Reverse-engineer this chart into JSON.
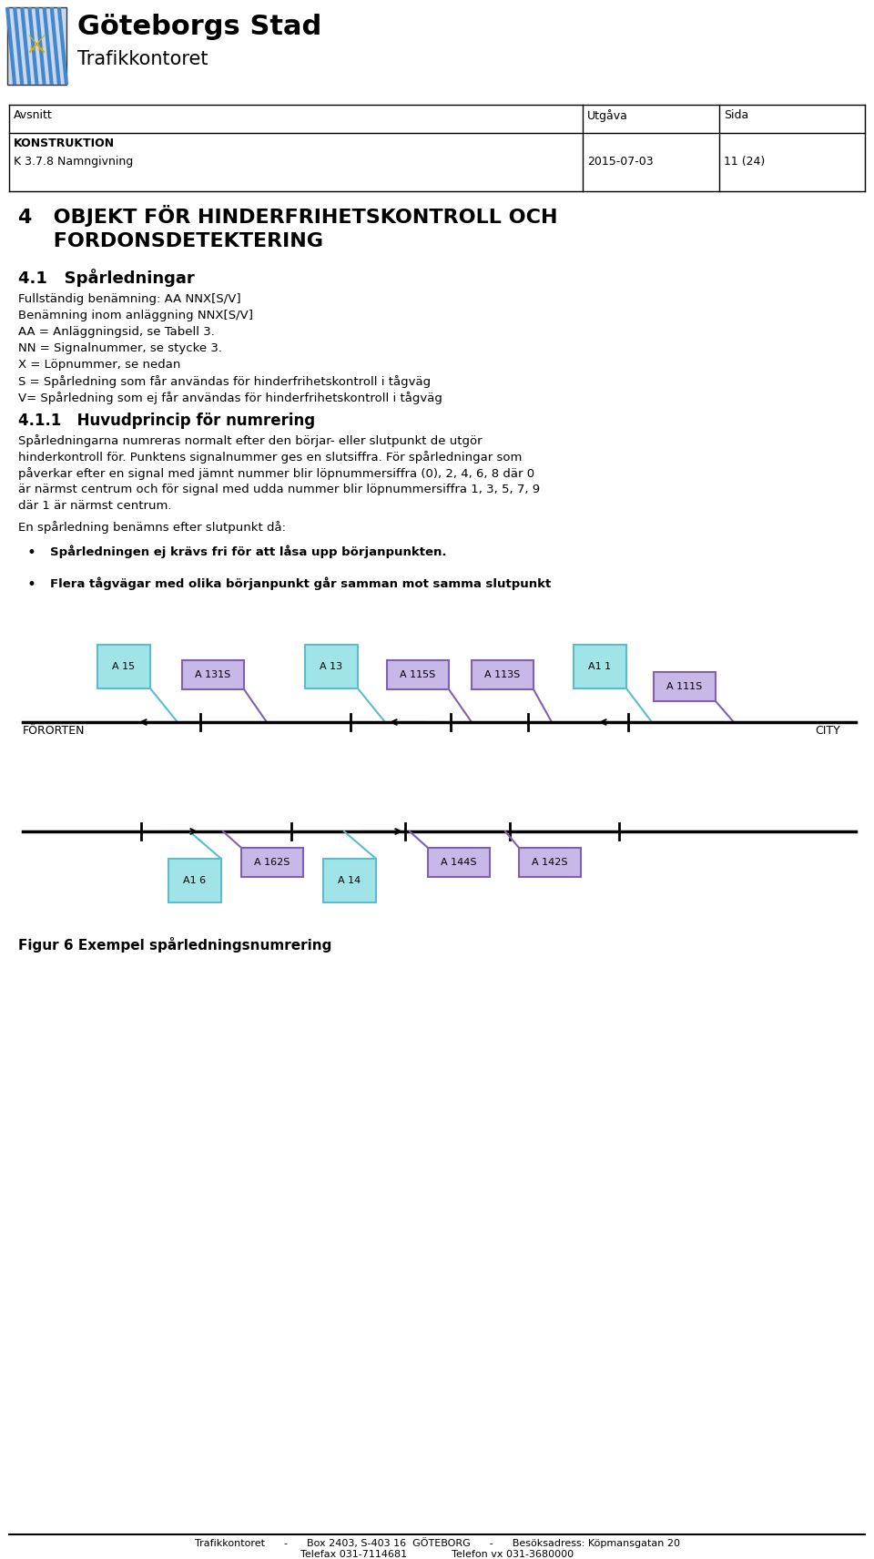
{
  "page_width": 9.6,
  "page_height": 17.12,
  "dpi": 100,
  "bg_color": "#ffffff",
  "header": {
    "org_name": "Göteborgs Stad",
    "dept_name": "Trafikkontoret",
    "table_row1_col1": "Avsnitt",
    "table_row1_col2": "Utgåva",
    "table_row1_col3": "Sida",
    "table_row2_col1": "KONSTRUKTION",
    "table_row3_col1": "K 3.7.8 Namngivning",
    "table_row3_col2": "2015-07-03",
    "table_row3_col3": "11 (24)"
  },
  "sec4_title_line1": "4   OBJEKT FÖR HINDERFRIHETSKONTROLL OCH",
  "sec4_title_line2": "     FORDONSDETEKTERING",
  "sec41_title": "4.1   Spårledningar",
  "sec41_lines": [
    "Fullständig benämning: AA NNX[S/V]",
    "Benämning inom anläggning NNX[S/V]",
    "AA = Anläggningsid, se Tabell 3.",
    "NN = Signalnummer, se stycke 3.",
    "X = Löpnummer, se nedan",
    "S = Spårledning som får användas för hinderfrihetskontroll i tågväg",
    "V= Spårledning som ej får användas för hinderfrihetskontroll i tågväg"
  ],
  "sec411_title": "4.1.1   Huvudprincip för numrering",
  "sec411_lines": [
    "Spårledningarna numreras normalt efter den börjar- eller slutpunkt de utgör",
    "hinderkontroll för. Punktens signalnummer ges en slutsiffra. För spårledningar som",
    "påverkar efter en signal med jämnt nummer blir löpnummersiffra (0), 2, 4, 6, 8 där 0",
    "är närmst centrum och för signal med udda nummer blir löpnummersiffra 1, 3, 5, 7, 9",
    "där 1 är närmst centrum."
  ],
  "sec411_line2": "En spårledning benämns efter slutpunkt då:",
  "bullet1": "Spårledningen ej krävs fri för att låsa upp börjanpunkten.",
  "bullet2": "Flera tågvägar med olika börjanpunkt går samman mot samma slutpunkt",
  "fig_caption": "Figur 6 Exempel spårledningsnumrering",
  "footer_line1": "Trafikkontoret      -      Box 2403, S-403 16  GÖTEBORG      -      Besöksadress: Köpmansgatan 20",
  "footer_line2": "Telefax 031-7114681              Telefon vx 031-3680000",
  "cyan_color": "#a0e4e8",
  "cyan_border": "#5bbccc",
  "purple_color": "#c8b8e8",
  "purple_border": "#8060b0",
  "track_color": "#000000"
}
